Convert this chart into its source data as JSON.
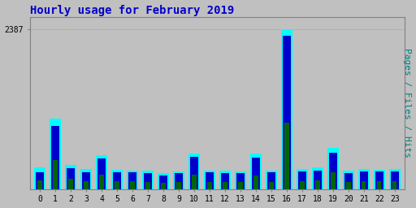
{
  "title": "Hourly usage for February 2019",
  "ylabel": "Pages / Files / Hits",
  "hours": [
    0,
    1,
    2,
    3,
    4,
    5,
    6,
    7,
    8,
    9,
    10,
    11,
    12,
    13,
    14,
    15,
    16,
    17,
    18,
    19,
    20,
    21,
    22,
    23
  ],
  "ymax": 2387,
  "ytick_label": "2387",
  "hits": [
    320,
    1050,
    360,
    300,
    510,
    295,
    280,
    275,
    235,
    270,
    530,
    280,
    275,
    265,
    530,
    280,
    2387,
    305,
    320,
    620,
    275,
    300,
    295,
    300
  ],
  "files": [
    250,
    950,
    310,
    255,
    460,
    255,
    250,
    245,
    210,
    240,
    480,
    250,
    245,
    238,
    470,
    250,
    2300,
    265,
    280,
    545,
    245,
    265,
    260,
    265
  ],
  "pages": [
    130,
    430,
    150,
    125,
    220,
    120,
    115,
    110,
    95,
    105,
    220,
    110,
    110,
    105,
    210,
    110,
    1000,
    120,
    130,
    250,
    110,
    120,
    115,
    120
  ],
  "color_hits": "#00ffff",
  "color_files": "#0000cd",
  "color_pages": "#006400",
  "bg_color": "#c0c0c0",
  "plot_bg": "#c0c0c0",
  "title_color": "#0000cc",
  "ylabel_color": "#008080",
  "tick_color": "#000000",
  "bar_width": 0.75,
  "title_fontsize": 10,
  "ylabel_fontsize": 8,
  "grid_color": "#aaaaaa"
}
